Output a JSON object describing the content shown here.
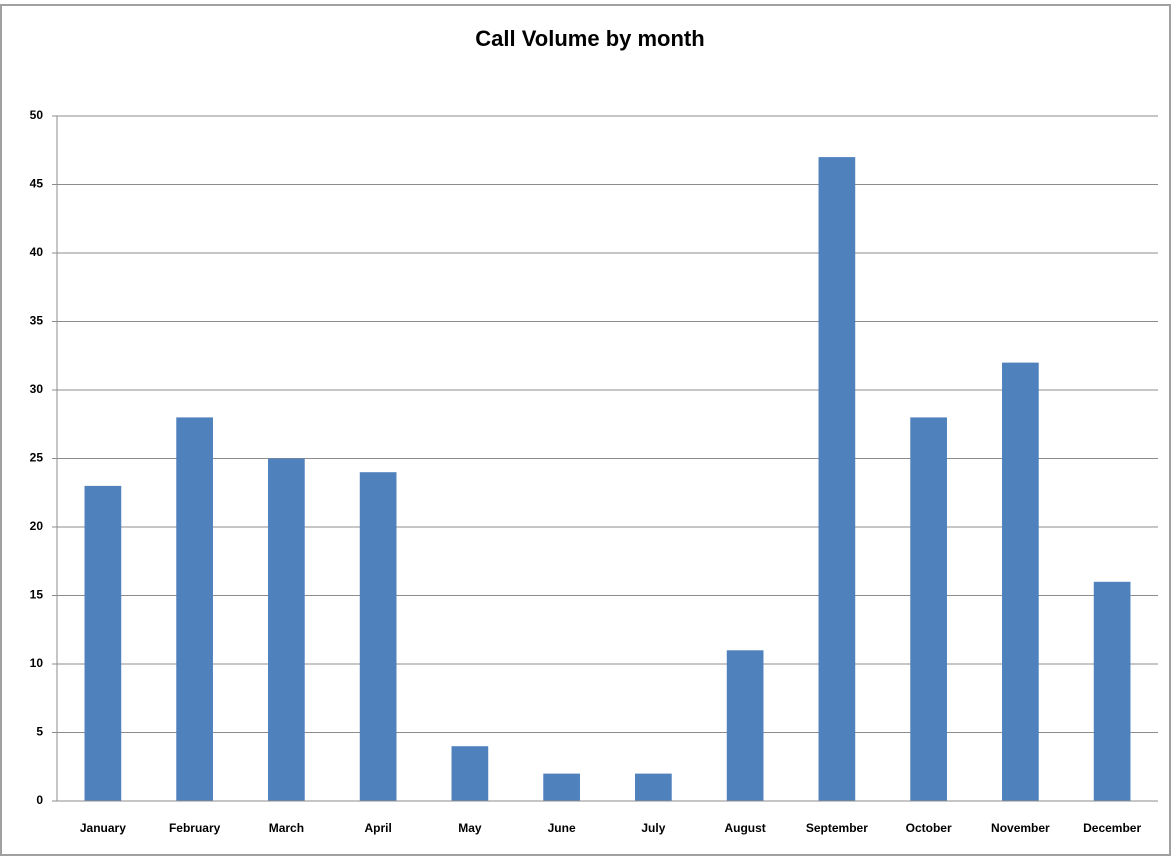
{
  "chart_data": {
    "type": "bar",
    "title": "Call Volume by month",
    "categories": [
      "January",
      "February",
      "March",
      "April",
      "May",
      "June",
      "July",
      "August",
      "September",
      "October",
      "November",
      "December"
    ],
    "values": [
      23,
      28,
      25,
      24,
      4,
      2,
      2,
      11,
      47,
      28,
      32,
      16
    ],
    "color": "#4f81bd",
    "ylim": [
      0,
      50
    ],
    "yticks": [
      0,
      5,
      10,
      15,
      20,
      25,
      30,
      35,
      40,
      45,
      50
    ],
    "grid": true
  }
}
